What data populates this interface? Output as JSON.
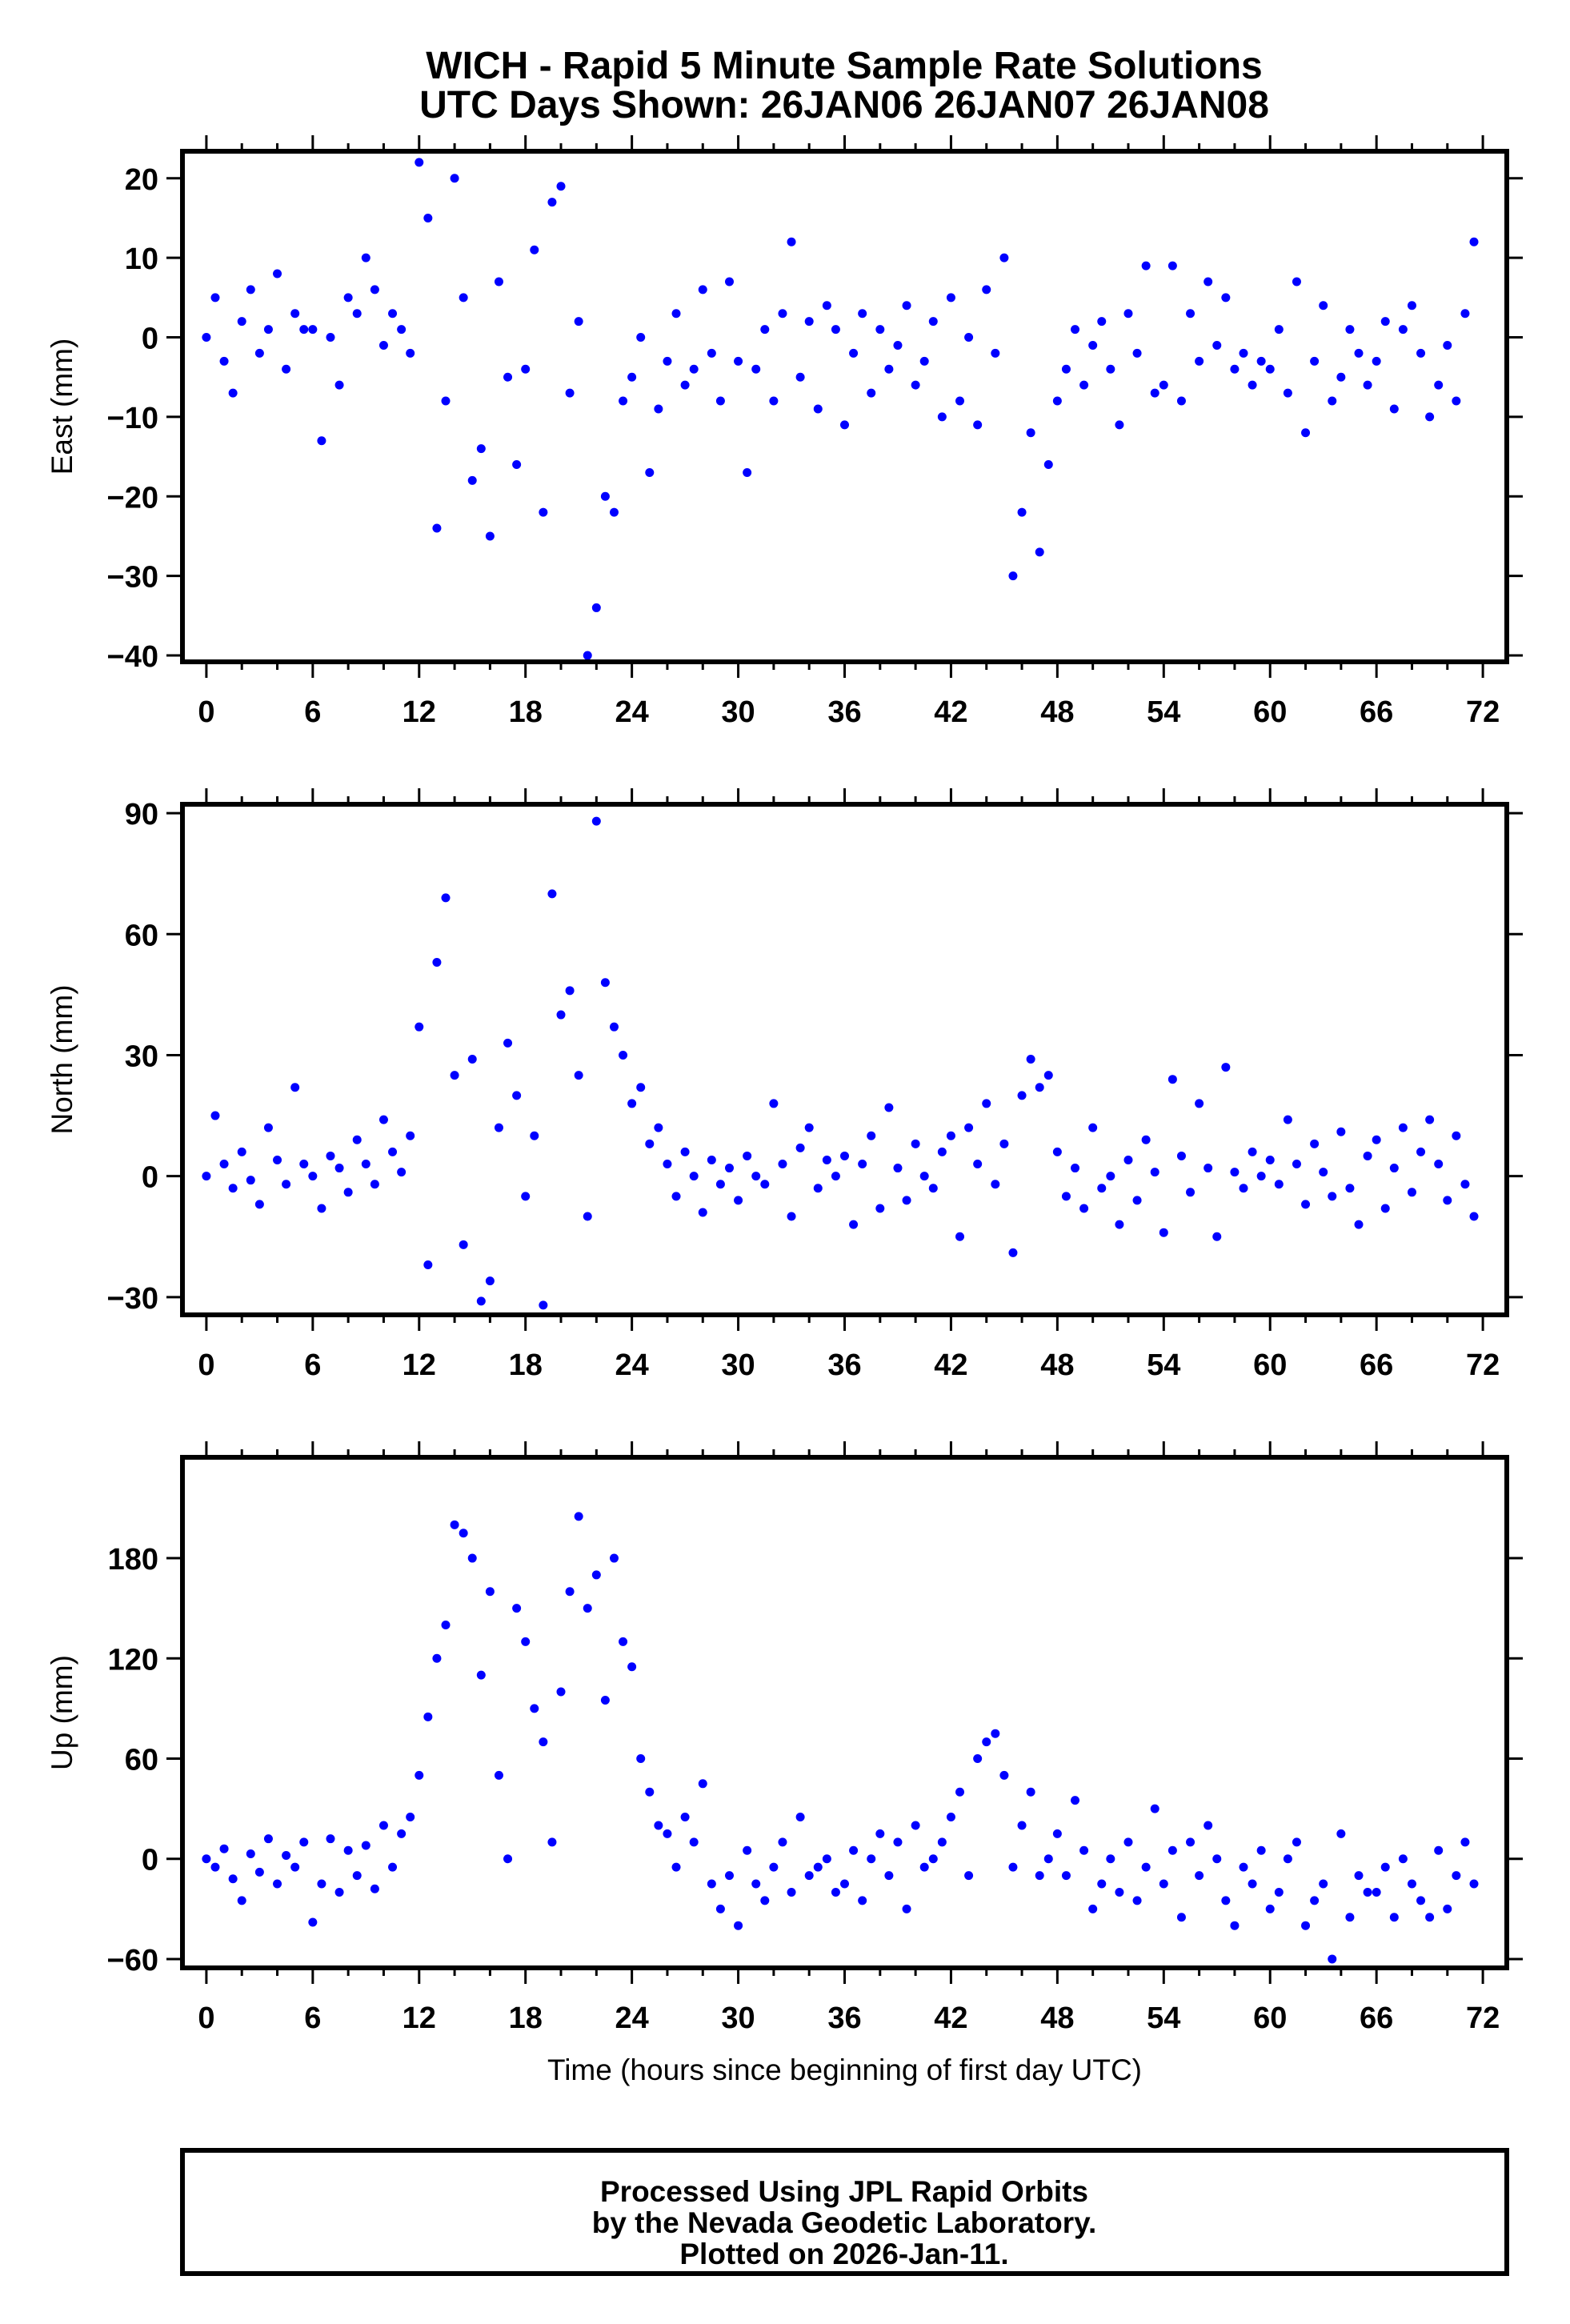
{
  "title": {
    "line1": "WICH - Rapid 5 Minute Sample Rate Solutions",
    "line2": "UTC Days Shown:  26JAN06 26JAN07 26JAN08"
  },
  "footer": {
    "line1": "Processed Using JPL Rapid Orbits",
    "line2": "by the Nevada Geodetic Laboratory.",
    "line3": "Plotted on 2026-Jan-11."
  },
  "chart_data": [
    {
      "type": "scatter",
      "name": "east",
      "ylabel": "East (mm)",
      "xlabel": "",
      "xlim": [
        -1.35,
        73.35
      ],
      "ylim": [
        -40.8,
        23.4
      ],
      "xticks": [
        "0",
        "6",
        "12",
        "18",
        "24",
        "30",
        "36",
        "42",
        "48",
        "54",
        "60",
        "66",
        "72"
      ],
      "yticks": [
        "20",
        "10",
        "0",
        "−10",
        "−20",
        "−30",
        "−40"
      ],
      "ytick_values": [
        20,
        10,
        0,
        -10,
        -20,
        -30,
        -40
      ],
      "color": "#0000ff",
      "x_start": 0,
      "x_step": 0.5,
      "values": [
        0,
        5,
        -3,
        -7,
        2,
        6,
        -2,
        1,
        8,
        -4,
        3,
        1,
        1,
        -13,
        0,
        -6,
        5,
        3,
        10,
        6,
        -1,
        3,
        1,
        -2,
        22,
        15,
        -24,
        -8,
        20,
        5,
        -18,
        -14,
        -25,
        7,
        -5,
        -16,
        -4,
        11,
        -22,
        17,
        19,
        -7,
        2,
        -40,
        -34,
        -20,
        -22,
        -8,
        -5,
        0,
        -17,
        -9,
        -3,
        3,
        -6,
        -4,
        6,
        -2,
        -8,
        7,
        -3,
        -17,
        -4,
        1,
        -8,
        3,
        12,
        -5,
        2,
        -9,
        4,
        1,
        -11,
        -2,
        3,
        -7,
        1,
        -4,
        -1,
        4,
        -6,
        -3,
        2,
        -10,
        5,
        -8,
        0,
        -11,
        6,
        -2,
        10,
        -30,
        -22,
        -12,
        -27,
        -16,
        -8,
        -4,
        1,
        -6,
        -1,
        2,
        -4,
        -11,
        3,
        -2,
        9,
        -7,
        -6,
        9,
        -8,
        3,
        -3,
        7,
        -1,
        5,
        -4,
        -2,
        -6,
        -3,
        -4,
        1,
        -7,
        7,
        -12,
        -3,
        4,
        -8,
        -5,
        1,
        -2,
        -6,
        -3,
        2,
        -9,
        1,
        4,
        -2,
        -10,
        -6,
        -1,
        -8,
        3,
        12
      ]
    },
    {
      "type": "scatter",
      "name": "north",
      "ylabel": "North (mm)",
      "xlabel": "",
      "xlim": [
        -1.35,
        73.35
      ],
      "ylim": [
        -34.4,
        92.2
      ],
      "xticks": [
        "0",
        "6",
        "12",
        "18",
        "24",
        "30",
        "36",
        "42",
        "48",
        "54",
        "60",
        "66",
        "72"
      ],
      "yticks": [
        "90",
        "60",
        "30",
        "0",
        "−30"
      ],
      "ytick_values": [
        90,
        60,
        30,
        0,
        -30
      ],
      "color": "#0000ff",
      "x_start": 0,
      "x_step": 0.5,
      "values": [
        0,
        15,
        3,
        -3,
        6,
        -1,
        -7,
        12,
        4,
        -2,
        22,
        3,
        0,
        -8,
        5,
        2,
        -4,
        9,
        3,
        -2,
        14,
        6,
        1,
        10,
        37,
        -22,
        53,
        69,
        25,
        -17,
        29,
        -31,
        -26,
        12,
        33,
        20,
        -5,
        10,
        -32,
        70,
        40,
        46,
        25,
        -10,
        88,
        48,
        37,
        30,
        18,
        22,
        8,
        12,
        3,
        -5,
        6,
        0,
        -9,
        4,
        -2,
        2,
        -6,
        5,
        0,
        -2,
        18,
        3,
        -10,
        7,
        12,
        -3,
        4,
        0,
        5,
        -12,
        3,
        10,
        -8,
        17,
        2,
        -6,
        8,
        0,
        -3,
        6,
        10,
        -15,
        12,
        3,
        18,
        -2,
        8,
        -19,
        20,
        29,
        22,
        25,
        6,
        -5,
        2,
        -8,
        12,
        -3,
        0,
        -12,
        4,
        -6,
        9,
        1,
        -14,
        24,
        5,
        -4,
        18,
        2,
        -15,
        27,
        1,
        -3,
        6,
        0,
        4,
        -2,
        14,
        3,
        -7,
        8,
        1,
        -5,
        11,
        -3,
        -12,
        5,
        9,
        -8,
        2,
        12,
        -4,
        6,
        14,
        3,
        -6,
        10,
        -2,
        -10
      ]
    },
    {
      "type": "scatter",
      "name": "up",
      "ylabel": "Up (mm)",
      "xlabel": "Time (hours since beginning of first day UTC)",
      "xlim": [
        -1.35,
        73.35
      ],
      "ylim": [
        -65.3,
        240.4
      ],
      "xticks": [
        "0",
        "6",
        "12",
        "18",
        "24",
        "30",
        "36",
        "42",
        "48",
        "54",
        "60",
        "66",
        "72"
      ],
      "yticks": [
        "180",
        "120",
        "60",
        "0",
        "−60"
      ],
      "ytick_values": [
        180,
        120,
        60,
        0,
        -60
      ],
      "color": "#0000ff",
      "x_start": 0,
      "x_step": 0.5,
      "values": [
        0,
        -5,
        6,
        -12,
        -25,
        3,
        -8,
        12,
        -15,
        2,
        -5,
        10,
        -38,
        -15,
        12,
        -20,
        5,
        -10,
        8,
        -18,
        20,
        -5,
        15,
        25,
        50,
        85,
        120,
        140,
        200,
        195,
        180,
        110,
        160,
        50,
        0,
        150,
        130,
        90,
        70,
        10,
        100,
        160,
        205,
        150,
        170,
        95,
        180,
        130,
        115,
        60,
        40,
        20,
        15,
        -5,
        25,
        10,
        45,
        -15,
        -30,
        -10,
        -40,
        5,
        -15,
        -25,
        -5,
        10,
        -20,
        25,
        -10,
        -5,
        0,
        -20,
        -15,
        5,
        -25,
        0,
        15,
        -10,
        10,
        -30,
        20,
        -5,
        0,
        10,
        25,
        40,
        -10,
        60,
        70,
        75,
        50,
        -5,
        20,
        40,
        -10,
        0,
        15,
        -10,
        35,
        5,
        -30,
        -15,
        0,
        -20,
        10,
        -25,
        -5,
        30,
        -15,
        5,
        -35,
        10,
        -10,
        20,
        0,
        -25,
        -40,
        -5,
        -15,
        5,
        -30,
        -20,
        0,
        10,
        -40,
        -25,
        -15,
        -60,
        15,
        -35,
        -10,
        -20,
        -20,
        -5,
        -35,
        0,
        -15,
        -25,
        -35,
        5,
        -30,
        -10,
        10,
        -15
      ]
    }
  ]
}
